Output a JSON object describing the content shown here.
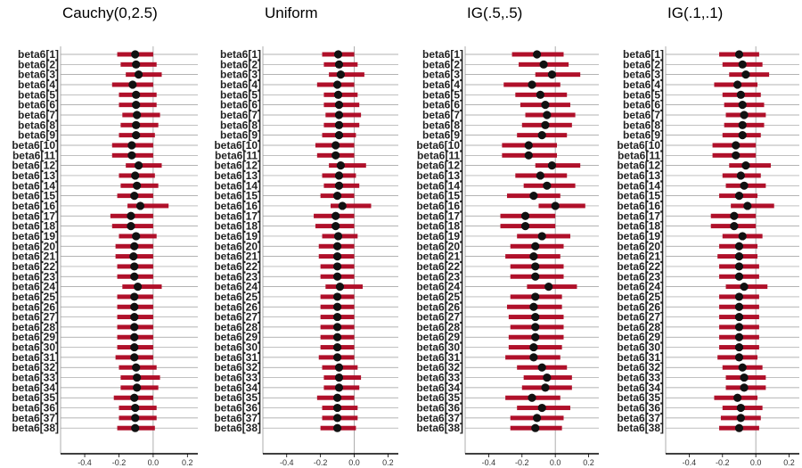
{
  "chart_data": {
    "type": "interval",
    "labels": [
      "beta6[1]",
      "beta6[2]",
      "beta6[3]",
      "beta6[4]",
      "beta6[5]",
      "beta6[6]",
      "beta6[7]",
      "beta6[8]",
      "beta6[9]",
      "beta6[10]",
      "beta6[11]",
      "beta6[12]",
      "beta6[13]",
      "beta6[14]",
      "beta6[15]",
      "beta6[16]",
      "beta6[17]",
      "beta6[18]",
      "beta6[19]",
      "beta6[20]",
      "beta6[21]",
      "beta6[22]",
      "beta6[23]",
      "beta6[24]",
      "beta6[25]",
      "beta6[26]",
      "beta6[27]",
      "beta6[28]",
      "beta6[29]",
      "beta6[30]",
      "beta6[31]",
      "beta6[32]",
      "beta6[33]",
      "beta6[34]",
      "beta6[35]",
      "beta6[36]",
      "beta6[37]",
      "beta6[38]"
    ],
    "xlim": [
      -0.52,
      0.24
    ],
    "ticks": [
      -0.4,
      -0.2,
      0.0,
      0.2
    ],
    "tick_labels": [
      "-0.4",
      "-0.2",
      "0.0",
      "0.2"
    ],
    "reference_line": 0,
    "colors": {
      "interval": "#b0102a",
      "point": "#111111",
      "grid": "#9a9a9a",
      "axis": "#000000"
    },
    "panels": [
      {
        "title": "Cauchy(0,2.5)",
        "median": [
          -0.105,
          -0.1,
          -0.085,
          -0.12,
          -0.1,
          -0.1,
          -0.095,
          -0.1,
          -0.1,
          -0.125,
          -0.125,
          -0.085,
          -0.105,
          -0.095,
          -0.11,
          -0.075,
          -0.13,
          -0.13,
          -0.1,
          -0.11,
          -0.115,
          -0.11,
          -0.11,
          -0.09,
          -0.11,
          -0.11,
          -0.11,
          -0.11,
          -0.11,
          -0.11,
          -0.11,
          -0.1,
          -0.095,
          -0.095,
          -0.11,
          -0.105,
          -0.105,
          -0.105
        ],
        "lower": [
          -0.21,
          -0.19,
          -0.16,
          -0.24,
          -0.2,
          -0.2,
          -0.18,
          -0.19,
          -0.2,
          -0.24,
          -0.24,
          -0.16,
          -0.2,
          -0.19,
          -0.21,
          -0.15,
          -0.25,
          -0.24,
          -0.2,
          -0.22,
          -0.22,
          -0.21,
          -0.21,
          -0.18,
          -0.21,
          -0.21,
          -0.21,
          -0.21,
          -0.21,
          -0.21,
          -0.22,
          -0.2,
          -0.19,
          -0.19,
          -0.23,
          -0.2,
          -0.2,
          -0.21
        ],
        "upper": [
          0.0,
          0.02,
          0.05,
          0.0,
          0.02,
          0.02,
          0.04,
          0.03,
          0.01,
          0.0,
          0.0,
          0.05,
          0.01,
          0.03,
          0.0,
          0.09,
          0.0,
          0.0,
          0.02,
          0.0,
          0.0,
          0.0,
          0.0,
          0.05,
          0.0,
          0.0,
          0.0,
          0.0,
          0.0,
          0.0,
          0.0,
          0.02,
          0.04,
          0.03,
          0.0,
          0.02,
          0.02,
          0.01
        ]
      },
      {
        "title": "Uniform",
        "median": [
          -0.095,
          -0.09,
          -0.08,
          -0.1,
          -0.095,
          -0.09,
          -0.09,
          -0.09,
          -0.09,
          -0.11,
          -0.11,
          -0.08,
          -0.09,
          -0.09,
          -0.1,
          -0.07,
          -0.11,
          -0.11,
          -0.095,
          -0.1,
          -0.1,
          -0.1,
          -0.1,
          -0.085,
          -0.1,
          -0.1,
          -0.1,
          -0.1,
          -0.1,
          -0.1,
          -0.1,
          -0.09,
          -0.09,
          -0.09,
          -0.1,
          -0.1,
          -0.1,
          -0.1
        ],
        "lower": [
          -0.19,
          -0.18,
          -0.15,
          -0.22,
          -0.18,
          -0.18,
          -0.17,
          -0.18,
          -0.19,
          -0.23,
          -0.22,
          -0.15,
          -0.19,
          -0.18,
          -0.2,
          -0.14,
          -0.24,
          -0.23,
          -0.19,
          -0.21,
          -0.21,
          -0.2,
          -0.2,
          -0.17,
          -0.2,
          -0.2,
          -0.2,
          -0.2,
          -0.2,
          -0.2,
          -0.21,
          -0.19,
          -0.18,
          -0.18,
          -0.22,
          -0.19,
          -0.19,
          -0.2
        ],
        "upper": [
          0.0,
          0.02,
          0.06,
          0.0,
          0.02,
          0.03,
          0.04,
          0.03,
          0.01,
          0.0,
          0.0,
          0.07,
          0.01,
          0.03,
          0.0,
          0.1,
          0.0,
          0.0,
          0.02,
          0.0,
          0.0,
          0.0,
          0.0,
          0.05,
          0.0,
          0.0,
          0.0,
          0.0,
          0.0,
          0.0,
          0.0,
          0.02,
          0.04,
          0.03,
          0.0,
          0.02,
          0.02,
          0.01
        ]
      },
      {
        "title": "IG(.5,.5)",
        "median": [
          -0.11,
          -0.07,
          -0.02,
          -0.14,
          -0.09,
          -0.06,
          -0.05,
          -0.06,
          -0.08,
          -0.16,
          -0.16,
          -0.02,
          -0.09,
          -0.05,
          -0.13,
          0.0,
          -0.18,
          -0.18,
          -0.08,
          -0.12,
          -0.13,
          -0.12,
          -0.12,
          -0.04,
          -0.12,
          -0.13,
          -0.12,
          -0.12,
          -0.12,
          -0.13,
          -0.13,
          -0.08,
          -0.05,
          -0.06,
          -0.14,
          -0.08,
          -0.11,
          -0.12
        ],
        "lower": [
          -0.26,
          -0.22,
          -0.12,
          -0.31,
          -0.24,
          -0.21,
          -0.18,
          -0.2,
          -0.23,
          -0.32,
          -0.32,
          -0.12,
          -0.24,
          -0.19,
          -0.29,
          -0.1,
          -0.33,
          -0.33,
          -0.23,
          -0.27,
          -0.3,
          -0.27,
          -0.27,
          -0.17,
          -0.27,
          -0.29,
          -0.28,
          -0.27,
          -0.28,
          -0.28,
          -0.3,
          -0.23,
          -0.19,
          -0.2,
          -0.3,
          -0.23,
          -0.27,
          -0.27
        ],
        "upper": [
          0.05,
          0.08,
          0.15,
          0.03,
          0.07,
          0.09,
          0.12,
          0.1,
          0.07,
          0.01,
          0.01,
          0.15,
          0.07,
          0.12,
          0.03,
          0.18,
          0.0,
          0.0,
          0.09,
          0.05,
          0.03,
          0.05,
          0.05,
          0.13,
          0.04,
          0.04,
          0.05,
          0.05,
          0.05,
          0.04,
          0.03,
          0.07,
          0.1,
          0.1,
          0.03,
          0.09,
          0.05,
          0.04
        ]
      },
      {
        "title": "IG(.1,.1)",
        "median": [
          -0.1,
          -0.08,
          -0.06,
          -0.11,
          -0.09,
          -0.08,
          -0.07,
          -0.08,
          -0.08,
          -0.12,
          -0.12,
          -0.06,
          -0.09,
          -0.07,
          -0.1,
          -0.05,
          -0.13,
          -0.13,
          -0.08,
          -0.1,
          -0.1,
          -0.1,
          -0.1,
          -0.07,
          -0.1,
          -0.1,
          -0.1,
          -0.1,
          -0.1,
          -0.1,
          -0.1,
          -0.08,
          -0.07,
          -0.07,
          -0.11,
          -0.09,
          -0.09,
          -0.1
        ],
        "lower": [
          -0.22,
          -0.2,
          -0.16,
          -0.25,
          -0.2,
          -0.19,
          -0.18,
          -0.19,
          -0.2,
          -0.26,
          -0.26,
          -0.16,
          -0.2,
          -0.18,
          -0.22,
          -0.15,
          -0.27,
          -0.27,
          -0.2,
          -0.22,
          -0.23,
          -0.22,
          -0.22,
          -0.18,
          -0.22,
          -0.22,
          -0.22,
          -0.22,
          -0.22,
          -0.22,
          -0.23,
          -0.2,
          -0.18,
          -0.18,
          -0.25,
          -0.2,
          -0.21,
          -0.22
        ],
        "upper": [
          0.02,
          0.04,
          0.08,
          0.01,
          0.03,
          0.05,
          0.06,
          0.05,
          0.03,
          0.0,
          0.0,
          0.09,
          0.03,
          0.06,
          0.01,
          0.11,
          0.0,
          0.0,
          0.04,
          0.01,
          0.01,
          0.02,
          0.02,
          0.07,
          0.02,
          0.02,
          0.02,
          0.02,
          0.02,
          0.02,
          0.01,
          0.04,
          0.06,
          0.06,
          0.01,
          0.04,
          0.03,
          0.02
        ]
      }
    ]
  }
}
